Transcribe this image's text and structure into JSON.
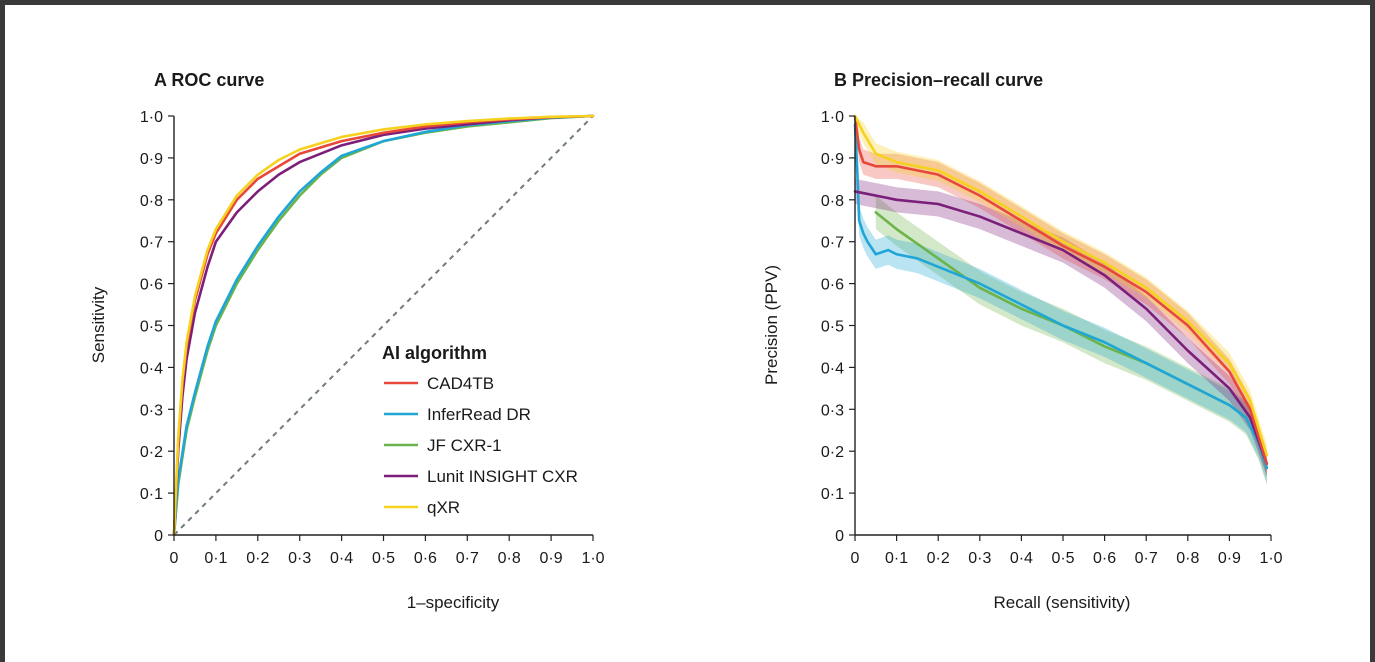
{
  "colors": {
    "CAD4TB": "#e8483a",
    "InferRead DR": "#1fa6d6",
    "JF CXR-1": "#6cb44a",
    "Lunit INSIGHT CXR": "#7b1f7a",
    "qXR": "#f6d21f",
    "diagonal": "#707a7a"
  },
  "legend": {
    "title": "AI algorithm",
    "items": [
      "CAD4TB",
      "InferRead DR",
      "JF CXR-1",
      "Lunit INSIGHT CXR",
      "qXR"
    ]
  },
  "chart_data": [
    {
      "type": "line",
      "title": "A ROC curve",
      "xlabel": "1–specificity",
      "ylabel": "Sensitivity",
      "xlim": [
        0,
        1
      ],
      "ylim": [
        0,
        1
      ],
      "x_ticks": [
        "0",
        "0·1",
        "0·2",
        "0·3",
        "0·4",
        "0·5",
        "0·6",
        "0·7",
        "0·8",
        "0·9",
        "1·0"
      ],
      "y_ticks": [
        "0",
        "0·1",
        "0·2",
        "0·3",
        "0·4",
        "0·5",
        "0·6",
        "0·7",
        "0·8",
        "0·9",
        "1·0"
      ],
      "grid": false,
      "legend_position": "bottom-right",
      "reference_line": [
        [
          0,
          0
        ],
        [
          1,
          1
        ]
      ],
      "series": [
        {
          "name": "JF CXR-1",
          "x": [
            0,
            0.01,
            0.03,
            0.05,
            0.08,
            0.1,
            0.15,
            0.2,
            0.25,
            0.3,
            0.35,
            0.4,
            0.5,
            0.6,
            0.7,
            0.8,
            0.9,
            1.0
          ],
          "y": [
            0,
            0.12,
            0.25,
            0.33,
            0.44,
            0.5,
            0.6,
            0.68,
            0.75,
            0.81,
            0.86,
            0.9,
            0.94,
            0.96,
            0.975,
            0.985,
            0.995,
            1.0
          ]
        },
        {
          "name": "InferRead DR",
          "x": [
            0,
            0.01,
            0.03,
            0.05,
            0.08,
            0.1,
            0.15,
            0.2,
            0.25,
            0.3,
            0.35,
            0.4,
            0.5,
            0.6,
            0.7,
            0.8,
            0.9,
            1.0
          ],
          "y": [
            0,
            0.13,
            0.26,
            0.34,
            0.45,
            0.51,
            0.61,
            0.69,
            0.76,
            0.82,
            0.865,
            0.905,
            0.94,
            0.962,
            0.978,
            0.988,
            0.996,
            1.0
          ]
        },
        {
          "name": "Lunit INSIGHT CXR",
          "x": [
            0,
            0.01,
            0.02,
            0.03,
            0.05,
            0.08,
            0.1,
            0.15,
            0.2,
            0.25,
            0.3,
            0.4,
            0.5,
            0.6,
            0.7,
            0.8,
            0.9,
            1.0
          ],
          "y": [
            0,
            0.2,
            0.33,
            0.42,
            0.53,
            0.64,
            0.7,
            0.77,
            0.82,
            0.86,
            0.89,
            0.93,
            0.955,
            0.97,
            0.98,
            0.99,
            0.997,
            1.0
          ]
        },
        {
          "name": "CAD4TB",
          "x": [
            0,
            0.01,
            0.02,
            0.03,
            0.05,
            0.08,
            0.1,
            0.15,
            0.2,
            0.25,
            0.3,
            0.4,
            0.5,
            0.6,
            0.7,
            0.8,
            0.9,
            1.0
          ],
          "y": [
            0,
            0.22,
            0.36,
            0.45,
            0.56,
            0.67,
            0.72,
            0.8,
            0.85,
            0.88,
            0.91,
            0.94,
            0.96,
            0.975,
            0.985,
            0.992,
            0.997,
            1.0
          ]
        },
        {
          "name": "qXR",
          "x": [
            0,
            0.01,
            0.02,
            0.03,
            0.05,
            0.08,
            0.1,
            0.15,
            0.2,
            0.25,
            0.3,
            0.4,
            0.5,
            0.6,
            0.7,
            0.8,
            0.9,
            1.0
          ],
          "y": [
            0,
            0.23,
            0.37,
            0.46,
            0.57,
            0.68,
            0.73,
            0.81,
            0.86,
            0.895,
            0.92,
            0.95,
            0.968,
            0.98,
            0.988,
            0.994,
            0.998,
            1.0
          ]
        }
      ]
    },
    {
      "type": "line",
      "title": "B Precision–recall curve",
      "xlabel": "Recall (sensitivity)",
      "ylabel": "Precision (PPV)",
      "xlim": [
        0,
        1
      ],
      "ylim": [
        0,
        1
      ],
      "x_ticks": [
        "0",
        "0·1",
        "0·2",
        "0·3",
        "0·4",
        "0·5",
        "0·6",
        "0·7",
        "0·8",
        "0·9",
        "1·0"
      ],
      "y_ticks": [
        "0",
        "0·1",
        "0·2",
        "0·3",
        "0·4",
        "0·5",
        "0·6",
        "0·7",
        "0·8",
        "0·9",
        "1·0"
      ],
      "grid": false,
      "series": [
        {
          "name": "JF CXR-1",
          "x": [
            0.05,
            0.1,
            0.2,
            0.3,
            0.4,
            0.5,
            0.6,
            0.7,
            0.8,
            0.9,
            0.94,
            0.97,
            0.99
          ],
          "y": [
            0.77,
            0.73,
            0.66,
            0.59,
            0.54,
            0.5,
            0.45,
            0.41,
            0.36,
            0.31,
            0.28,
            0.22,
            0.16
          ],
          "band": 0.04
        },
        {
          "name": "InferRead DR",
          "x": [
            0.0,
            0.005,
            0.01,
            0.02,
            0.03,
            0.05,
            0.08,
            0.1,
            0.15,
            0.2,
            0.3,
            0.4,
            0.5,
            0.6,
            0.7,
            0.8,
            0.9,
            0.94,
            0.97,
            0.99
          ],
          "y": [
            0.98,
            0.88,
            0.75,
            0.72,
            0.7,
            0.67,
            0.68,
            0.67,
            0.66,
            0.64,
            0.6,
            0.55,
            0.5,
            0.46,
            0.41,
            0.36,
            0.31,
            0.28,
            0.22,
            0.16
          ],
          "band": 0.035
        },
        {
          "name": "Lunit INSIGHT CXR",
          "x": [
            0.0,
            0.1,
            0.2,
            0.3,
            0.4,
            0.5,
            0.6,
            0.7,
            0.8,
            0.9,
            0.95,
            0.99
          ],
          "y": [
            0.82,
            0.8,
            0.79,
            0.76,
            0.72,
            0.68,
            0.62,
            0.54,
            0.44,
            0.35,
            0.28,
            0.17
          ],
          "band": 0.03
        },
        {
          "name": "CAD4TB",
          "x": [
            0.0,
            0.01,
            0.02,
            0.05,
            0.1,
            0.2,
            0.3,
            0.4,
            0.5,
            0.6,
            0.7,
            0.8,
            0.9,
            0.95,
            0.99
          ],
          "y": [
            1.0,
            0.92,
            0.89,
            0.88,
            0.88,
            0.86,
            0.81,
            0.75,
            0.69,
            0.64,
            0.58,
            0.5,
            0.39,
            0.3,
            0.17
          ],
          "band": 0.03
        },
        {
          "name": "qXR",
          "x": [
            0.0,
            0.02,
            0.05,
            0.1,
            0.2,
            0.3,
            0.4,
            0.5,
            0.6,
            0.7,
            0.8,
            0.9,
            0.95,
            0.99
          ],
          "y": [
            1.0,
            0.96,
            0.91,
            0.89,
            0.87,
            0.82,
            0.76,
            0.7,
            0.65,
            0.59,
            0.51,
            0.41,
            0.32,
            0.19
          ],
          "band": 0.025
        }
      ]
    }
  ]
}
